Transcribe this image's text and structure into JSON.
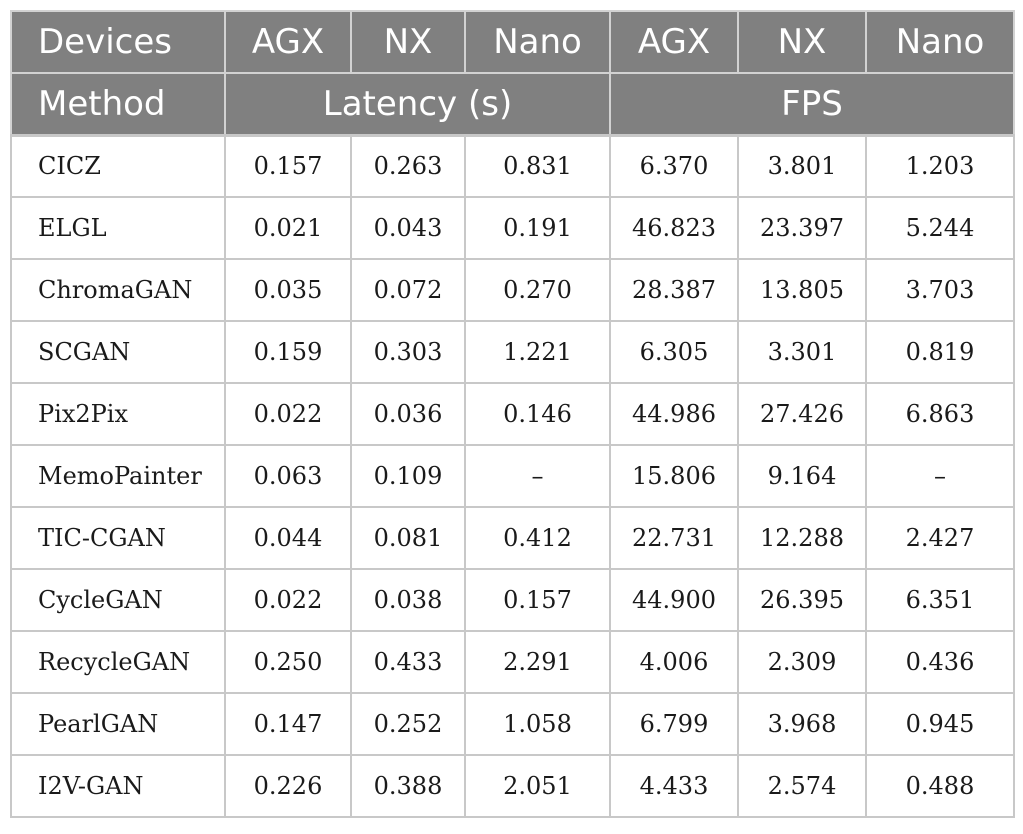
{
  "header": {
    "row1": [
      "Devices",
      "AGX",
      "NX",
      "Nano",
      "AGX",
      "NX",
      "Nano"
    ],
    "row2": {
      "method": "Method",
      "latency": "Latency (s)",
      "fps": "FPS"
    }
  },
  "rows": [
    [
      "CICZ",
      "0.157",
      "0.263",
      "0.831",
      "6.370",
      "3.801",
      "1.203"
    ],
    [
      "ELGL",
      "0.021",
      "0.043",
      "0.191",
      "46.823",
      "23.397",
      "5.244"
    ],
    [
      "ChromaGAN",
      "0.035",
      "0.072",
      "0.270",
      "28.387",
      "13.805",
      "3.703"
    ],
    [
      "SCGAN",
      "0.159",
      "0.303",
      "1.221",
      "6.305",
      "3.301",
      "0.819"
    ],
    [
      "Pix2Pix",
      "0.022",
      "0.036",
      "0.146",
      "44.986",
      "27.426",
      "6.863"
    ],
    [
      "MemoPainter",
      "0.063",
      "0.109",
      "–",
      "15.806",
      "9.164",
      "–"
    ],
    [
      "TIC-CGAN",
      "0.044",
      "0.081",
      "0.412",
      "22.731",
      "12.288",
      "2.427"
    ],
    [
      "CycleGAN",
      "0.022",
      "0.038",
      "0.157",
      "44.900",
      "26.395",
      "6.351"
    ],
    [
      "RecycleGAN",
      "0.250",
      "0.433",
      "2.291",
      "4.006",
      "2.309",
      "0.436"
    ],
    [
      "PearlGAN",
      "0.147",
      "0.252",
      "1.058",
      "6.799",
      "3.968",
      "0.945"
    ],
    [
      "I2V-GAN",
      "0.226",
      "0.388",
      "2.051",
      "4.433",
      "2.574",
      "0.488"
    ]
  ]
}
